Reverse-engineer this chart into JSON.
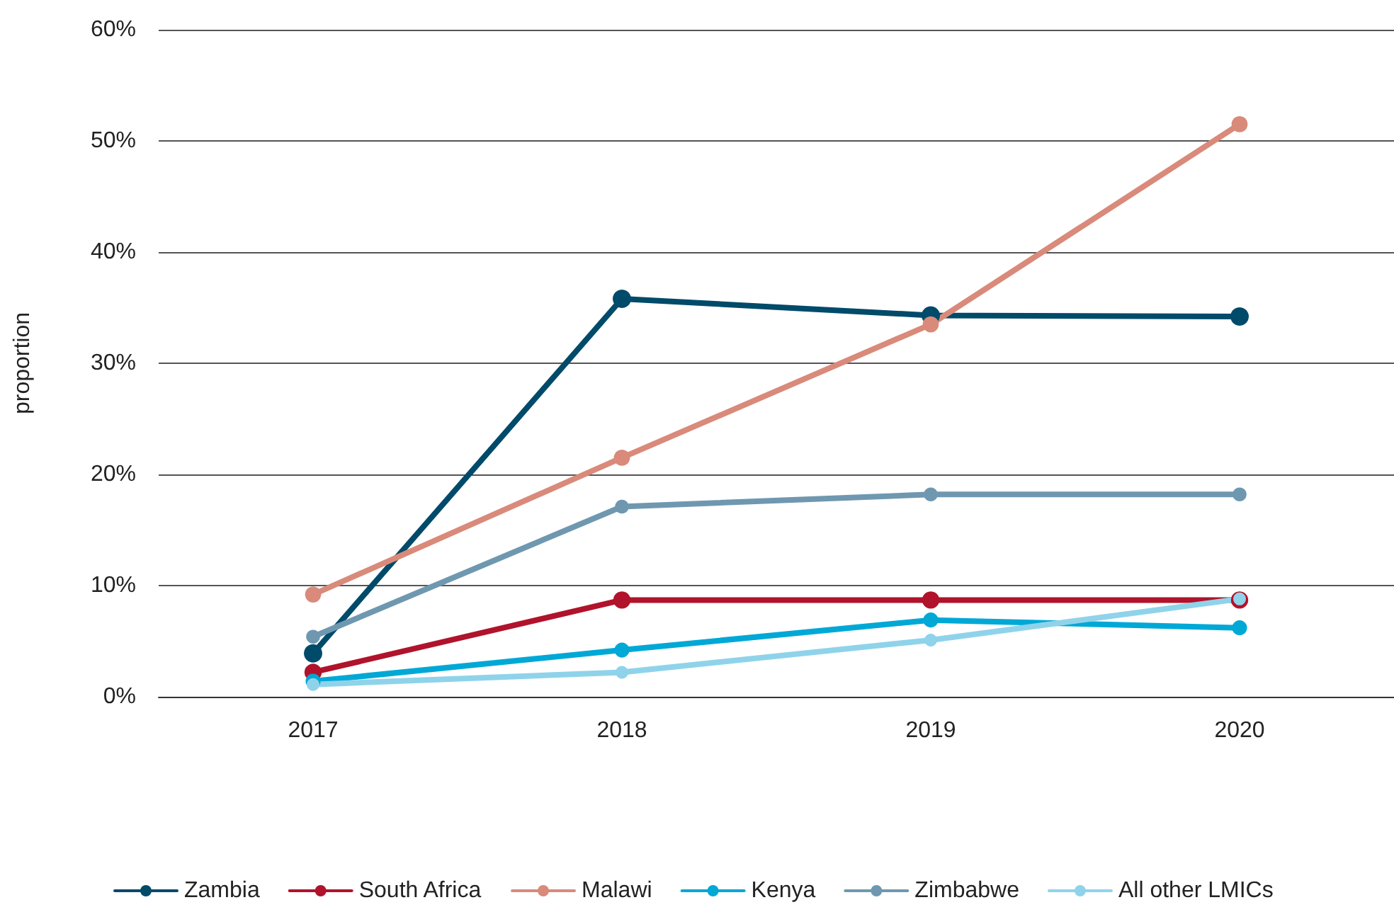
{
  "chart_data": {
    "type": "line",
    "ylabel": "proportion",
    "categories": [
      "2017",
      "2018",
      "2019",
      "2020"
    ],
    "series": [
      {
        "name": "Zambia",
        "color": "#004a6a",
        "values": [
          3.9,
          35.8,
          34.3,
          34.2
        ]
      },
      {
        "name": "South Africa",
        "color": "#b0132b",
        "values": [
          2.2,
          8.7,
          8.7,
          8.7
        ]
      },
      {
        "name": "Malawi",
        "color": "#d98a7a",
        "values": [
          9.2,
          21.5,
          33.5,
          51.5
        ]
      },
      {
        "name": "Kenya",
        "color": "#00a8d6",
        "values": [
          1.4,
          4.2,
          6.9,
          6.2
        ]
      },
      {
        "name": "Zimbabwe",
        "color": "#6f98b0",
        "values": [
          5.4,
          17.1,
          18.2,
          18.2
        ]
      },
      {
        "name": "All other LMICs",
        "color": "#8fd3ea",
        "values": [
          1.1,
          2.2,
          5.1,
          8.8
        ]
      }
    ],
    "ylim": [
      0,
      60
    ],
    "yticks": [
      {
        "value": 0,
        "label": "0%"
      },
      {
        "value": 10,
        "label": "10%"
      },
      {
        "value": 20,
        "label": "20%"
      },
      {
        "value": 30,
        "label": "30%"
      },
      {
        "value": 40,
        "label": "40%"
      },
      {
        "value": 50,
        "label": "50%"
      },
      {
        "value": 60,
        "label": "60%"
      }
    ],
    "grid": "y",
    "legend": "bottom",
    "marker": "circle",
    "line_style": "solid"
  }
}
